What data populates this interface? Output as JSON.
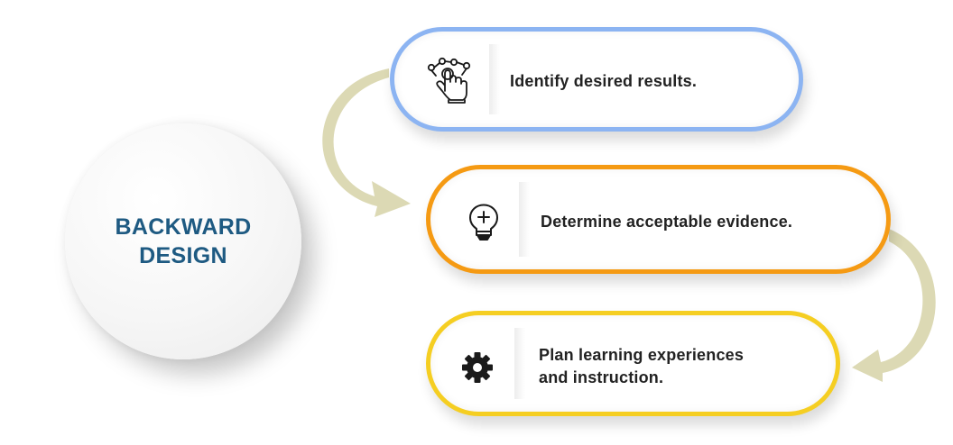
{
  "center": {
    "title_line1": "BACKWARD",
    "title_line2": "DESIGN"
  },
  "steps": [
    {
      "icon": "hand-pointer-network-icon",
      "lines": [
        "Identify desired results."
      ],
      "border_color": "#8cb4f2"
    },
    {
      "icon": "lightbulb-plus-icon",
      "lines": [
        "Determine acceptable evidence."
      ],
      "border_color": "#f59a13"
    },
    {
      "icon": "gear-icon",
      "lines": [
        "Plan learning experiences",
        "and instruction."
      ],
      "border_color": "#f5ce22"
    }
  ],
  "colors": {
    "title": "#1e5a82",
    "arrow": "#dcd9b4",
    "text": "#222222"
  }
}
